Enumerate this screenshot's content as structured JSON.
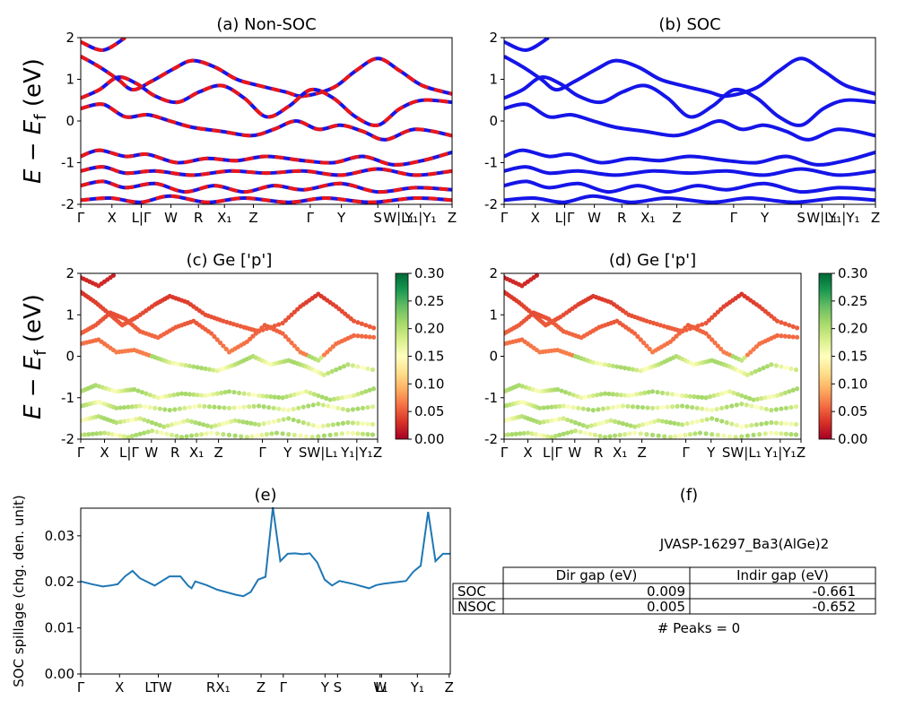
{
  "chart_data": [
    {
      "id": "a",
      "type": "line",
      "title": "(a) Non-SOC",
      "ylabel": "E - E_f (eV)",
      "ylim": [
        -2,
        2
      ],
      "yticks": [
        "-2",
        "-1",
        "0",
        "1",
        "2"
      ],
      "xtick_labels": [
        "Γ",
        "X",
        "L|Γ",
        "W",
        "R",
        "X₁",
        "Z",
        "Γ",
        "Y",
        "S",
        "W|L₁",
        "Y₁|Y₁",
        "Z"
      ],
      "series": [
        {
          "values": [
            [
              0,
              1.9
            ],
            [
              0.06,
              1.7
            ],
            [
              0.12,
              2.0
            ]
          ]
        },
        {
          "values": [
            [
              0,
              1.55
            ],
            [
              0.05,
              1.3
            ],
            [
              0.1,
              1.0
            ],
            [
              0.14,
              0.75
            ],
            [
              0.19,
              0.95
            ],
            [
              0.25,
              1.25
            ],
            [
              0.3,
              1.45
            ],
            [
              0.36,
              1.3
            ],
            [
              0.42,
              1.0
            ],
            [
              0.48,
              0.85
            ],
            [
              0.55,
              0.7
            ],
            [
              0.6,
              0.6
            ],
            [
              0.68,
              0.8
            ],
            [
              0.74,
              1.2
            ],
            [
              0.8,
              1.5
            ],
            [
              0.86,
              1.2
            ],
            [
              0.92,
              0.85
            ],
            [
              1.0,
              0.65
            ]
          ]
        },
        {
          "values": [
            [
              0,
              0.55
            ],
            [
              0.05,
              0.75
            ],
            [
              0.1,
              1.05
            ],
            [
              0.15,
              0.9
            ],
            [
              0.2,
              0.6
            ],
            [
              0.26,
              0.45
            ],
            [
              0.32,
              0.7
            ],
            [
              0.38,
              0.85
            ],
            [
              0.44,
              0.55
            ],
            [
              0.5,
              0.1
            ],
            [
              0.56,
              0.35
            ],
            [
              0.62,
              0.75
            ],
            [
              0.68,
              0.55
            ],
            [
              0.74,
              0.1
            ],
            [
              0.8,
              -0.1
            ],
            [
              0.86,
              0.3
            ],
            [
              0.92,
              0.5
            ],
            [
              1.0,
              0.45
            ]
          ]
        },
        {
          "values": [
            [
              0,
              0.3
            ],
            [
              0.06,
              0.4
            ],
            [
              0.12,
              0.1
            ],
            [
              0.18,
              0.15
            ],
            [
              0.24,
              0.0
            ],
            [
              0.3,
              -0.15
            ],
            [
              0.38,
              -0.25
            ],
            [
              0.46,
              -0.35
            ],
            [
              0.52,
              -0.2
            ],
            [
              0.58,
              0.0
            ],
            [
              0.64,
              -0.2
            ],
            [
              0.7,
              -0.1
            ],
            [
              0.76,
              -0.25
            ],
            [
              0.82,
              -0.45
            ],
            [
              0.9,
              -0.2
            ],
            [
              1.0,
              -0.35
            ]
          ]
        },
        {
          "values": [
            [
              0,
              -0.85
            ],
            [
              0.05,
              -0.7
            ],
            [
              0.12,
              -0.85
            ],
            [
              0.18,
              -0.8
            ],
            [
              0.26,
              -1.0
            ],
            [
              0.34,
              -0.9
            ],
            [
              0.42,
              -0.95
            ],
            [
              0.5,
              -0.85
            ],
            [
              0.6,
              -0.95
            ],
            [
              0.68,
              -1.0
            ],
            [
              0.76,
              -0.85
            ],
            [
              0.84,
              -1.05
            ],
            [
              0.92,
              -0.95
            ],
            [
              1.0,
              -0.75
            ]
          ]
        },
        {
          "values": [
            [
              0,
              -1.2
            ],
            [
              0.06,
              -1.1
            ],
            [
              0.12,
              -1.25
            ],
            [
              0.2,
              -1.2
            ],
            [
              0.3,
              -1.3
            ],
            [
              0.4,
              -1.2
            ],
            [
              0.5,
              -1.25
            ],
            [
              0.6,
              -1.2
            ],
            [
              0.7,
              -1.3
            ],
            [
              0.8,
              -1.15
            ],
            [
              0.9,
              -1.3
            ],
            [
              1.0,
              -1.2
            ]
          ]
        },
        {
          "values": [
            [
              0,
              -1.55
            ],
            [
              0.06,
              -1.45
            ],
            [
              0.12,
              -1.6
            ],
            [
              0.2,
              -1.5
            ],
            [
              0.28,
              -1.7
            ],
            [
              0.36,
              -1.55
            ],
            [
              0.44,
              -1.7
            ],
            [
              0.52,
              -1.55
            ],
            [
              0.6,
              -1.65
            ],
            [
              0.7,
              -1.5
            ],
            [
              0.8,
              -1.7
            ],
            [
              0.9,
              -1.6
            ],
            [
              1.0,
              -1.65
            ]
          ]
        },
        {
          "values": [
            [
              0,
              -1.9
            ],
            [
              0.08,
              -1.85
            ],
            [
              0.16,
              -1.95
            ],
            [
              0.24,
              -1.8
            ],
            [
              0.34,
              -1.95
            ],
            [
              0.44,
              -1.85
            ],
            [
              0.56,
              -1.95
            ],
            [
              0.66,
              -1.85
            ],
            [
              0.78,
              -1.95
            ],
            [
              0.9,
              -1.85
            ],
            [
              1.0,
              -1.9
            ]
          ]
        }
      ]
    },
    {
      "id": "b",
      "type": "line",
      "title": "(b) SOC",
      "ylim": [
        -2,
        2
      ],
      "yticks": [
        "-2",
        "-1",
        "0",
        "1",
        "2"
      ],
      "xtick_labels": [
        "Γ",
        "X",
        "L|Γ",
        "W",
        "R",
        "X₁",
        "Z",
        "Γ",
        "Y",
        "S",
        "W|L₁",
        "Y₁|Y₁",
        "Z"
      ],
      "series": [
        {
          "values": [
            [
              0,
              1.9
            ],
            [
              0.06,
              1.7
            ],
            [
              0.12,
              2.0
            ]
          ]
        },
        {
          "values": [
            [
              0,
              1.55
            ],
            [
              0.05,
              1.3
            ],
            [
              0.1,
              1.0
            ],
            [
              0.14,
              0.75
            ],
            [
              0.19,
              0.95
            ],
            [
              0.25,
              1.25
            ],
            [
              0.3,
              1.45
            ],
            [
              0.36,
              1.3
            ],
            [
              0.42,
              1.0
            ],
            [
              0.48,
              0.85
            ],
            [
              0.55,
              0.7
            ],
            [
              0.6,
              0.6
            ],
            [
              0.68,
              0.8
            ],
            [
              0.74,
              1.2
            ],
            [
              0.8,
              1.5
            ],
            [
              0.86,
              1.2
            ],
            [
              0.92,
              0.85
            ],
            [
              1.0,
              0.65
            ]
          ]
        },
        {
          "values": [
            [
              0,
              0.55
            ],
            [
              0.05,
              0.75
            ],
            [
              0.1,
              1.05
            ],
            [
              0.15,
              0.9
            ],
            [
              0.2,
              0.6
            ],
            [
              0.26,
              0.45
            ],
            [
              0.32,
              0.7
            ],
            [
              0.38,
              0.85
            ],
            [
              0.44,
              0.55
            ],
            [
              0.5,
              0.1
            ],
            [
              0.56,
              0.35
            ],
            [
              0.62,
              0.75
            ],
            [
              0.68,
              0.55
            ],
            [
              0.74,
              0.1
            ],
            [
              0.8,
              -0.1
            ],
            [
              0.86,
              0.3
            ],
            [
              0.92,
              0.5
            ],
            [
              1.0,
              0.45
            ]
          ]
        },
        {
          "values": [
            [
              0,
              0.3
            ],
            [
              0.06,
              0.4
            ],
            [
              0.12,
              0.1
            ],
            [
              0.18,
              0.15
            ],
            [
              0.24,
              0.0
            ],
            [
              0.3,
              -0.15
            ],
            [
              0.38,
              -0.25
            ],
            [
              0.46,
              -0.35
            ],
            [
              0.52,
              -0.2
            ],
            [
              0.58,
              0.0
            ],
            [
              0.64,
              -0.2
            ],
            [
              0.7,
              -0.1
            ],
            [
              0.76,
              -0.25
            ],
            [
              0.82,
              -0.45
            ],
            [
              0.9,
              -0.2
            ],
            [
              1.0,
              -0.35
            ]
          ]
        },
        {
          "values": [
            [
              0,
              -0.85
            ],
            [
              0.05,
              -0.7
            ],
            [
              0.12,
              -0.85
            ],
            [
              0.18,
              -0.8
            ],
            [
              0.26,
              -1.0
            ],
            [
              0.34,
              -0.9
            ],
            [
              0.42,
              -0.95
            ],
            [
              0.5,
              -0.85
            ],
            [
              0.6,
              -0.95
            ],
            [
              0.68,
              -1.0
            ],
            [
              0.76,
              -0.85
            ],
            [
              0.84,
              -1.05
            ],
            [
              0.92,
              -0.95
            ],
            [
              1.0,
              -0.75
            ]
          ]
        },
        {
          "values": [
            [
              0,
              -1.2
            ],
            [
              0.06,
              -1.1
            ],
            [
              0.12,
              -1.25
            ],
            [
              0.2,
              -1.2
            ],
            [
              0.3,
              -1.3
            ],
            [
              0.4,
              -1.2
            ],
            [
              0.5,
              -1.25
            ],
            [
              0.6,
              -1.2
            ],
            [
              0.7,
              -1.3
            ],
            [
              0.8,
              -1.15
            ],
            [
              0.9,
              -1.3
            ],
            [
              1.0,
              -1.2
            ]
          ]
        },
        {
          "values": [
            [
              0,
              -1.55
            ],
            [
              0.06,
              -1.45
            ],
            [
              0.12,
              -1.6
            ],
            [
              0.2,
              -1.5
            ],
            [
              0.28,
              -1.7
            ],
            [
              0.36,
              -1.55
            ],
            [
              0.44,
              -1.7
            ],
            [
              0.52,
              -1.55
            ],
            [
              0.6,
              -1.65
            ],
            [
              0.7,
              -1.5
            ],
            [
              0.8,
              -1.7
            ],
            [
              0.9,
              -1.6
            ],
            [
              1.0,
              -1.65
            ]
          ]
        },
        {
          "values": [
            [
              0,
              -1.9
            ],
            [
              0.08,
              -1.85
            ],
            [
              0.16,
              -1.95
            ],
            [
              0.24,
              -1.8
            ],
            [
              0.34,
              -1.95
            ],
            [
              0.44,
              -1.85
            ],
            [
              0.56,
              -1.95
            ],
            [
              0.66,
              -1.85
            ],
            [
              0.78,
              -1.95
            ],
            [
              0.9,
              -1.85
            ],
            [
              1.0,
              -1.9
            ]
          ]
        }
      ]
    },
    {
      "id": "c",
      "type": "scatter",
      "title": "(c)  Ge ['p']",
      "ylabel": "E - E_f (eV)",
      "ylim": [
        -2,
        2
      ],
      "yticks": [
        "-2",
        "-1",
        "0",
        "1",
        "2"
      ],
      "xtick_labels": [
        "Γ",
        "X",
        "L|Γ",
        "W",
        "R",
        "X₁",
        "Z",
        "Γ",
        "Y",
        "SW|L₁",
        "Y₁|Y₁",
        "Z"
      ],
      "colorbar": {
        "min": 0.0,
        "max": 0.3,
        "ticks": [
          "0.00",
          "0.05",
          "0.10",
          "0.15",
          "0.20",
          "0.25",
          "0.30"
        ]
      }
    },
    {
      "id": "d",
      "type": "scatter",
      "title": "(d) Ge ['p']",
      "ylim": [
        -2,
        2
      ],
      "yticks": [
        "-2",
        "-1",
        "0",
        "1",
        "2"
      ],
      "xtick_labels": [
        "Γ",
        "X",
        "L|Γ",
        "W",
        "R",
        "X₁",
        "Z",
        "Γ",
        "Y",
        "SW|L₁",
        "Y₁|Y₁",
        "Z"
      ],
      "colorbar": {
        "min": 0.0,
        "max": 0.3,
        "ticks": [
          "0.00",
          "0.05",
          "0.10",
          "0.15",
          "0.20",
          "0.25",
          "0.30"
        ]
      }
    },
    {
      "id": "e",
      "type": "line",
      "title": "(e)",
      "ylabel": "SOC spillage (chg. den. unit)",
      "ylim": [
        0,
        0.036
      ],
      "yticks": [
        "0.00",
        "0.01",
        "0.02",
        "0.03"
      ],
      "xtick_labels": [
        "Γ",
        "X",
        "LTW",
        "RX₁",
        "Z",
        "Γ",
        "Y",
        "S",
        "W",
        "L₁",
        "Y₁",
        "Z"
      ],
      "x": [
        0,
        0.03,
        0.06,
        0.08,
        0.1,
        0.12,
        0.14,
        0.16,
        0.2,
        0.24,
        0.27,
        0.29,
        0.3,
        0.31,
        0.34,
        0.37,
        0.42,
        0.44,
        0.46,
        0.48,
        0.5,
        0.52,
        0.54,
        0.56,
        0.58,
        0.6,
        0.62,
        0.64,
        0.66,
        0.68,
        0.7,
        0.74,
        0.78,
        0.8,
        0.82,
        0.84,
        0.86,
        0.88,
        0.9,
        0.92,
        0.94,
        0.96,
        0.98,
        1.0
      ],
      "values": [
        0.0201,
        0.0195,
        0.019,
        0.0192,
        0.0195,
        0.0212,
        0.0224,
        0.0208,
        0.0192,
        0.0212,
        0.0212,
        0.0192,
        0.0186,
        0.0201,
        0.0193,
        0.0183,
        0.0172,
        0.0169,
        0.0178,
        0.0205,
        0.0211,
        0.0362,
        0.0245,
        0.0261,
        0.0262,
        0.026,
        0.0262,
        0.0242,
        0.0205,
        0.0192,
        0.0202,
        0.0195,
        0.0186,
        0.0193,
        0.0196,
        0.0198,
        0.02,
        0.0202,
        0.0222,
        0.0235,
        0.0352,
        0.0245,
        0.0261,
        0.0261
      ]
    }
  ],
  "panel_f": {
    "title": "(f)",
    "jid": "JVASP-16297_Ba3(AlGe)2",
    "columns": [
      "Dir gap (eV)",
      "Indir gap (eV)"
    ],
    "rows": [
      {
        "label": "SOC",
        "dir": "0.009",
        "indir": "-0.661"
      },
      {
        "label": "NSOC",
        "dir": "0.005",
        "indir": "-0.652"
      }
    ],
    "peaks": "# Peaks = 0"
  },
  "colors": {
    "red": "#e8161b",
    "blue": "#1515e8",
    "line": "#1f77b4"
  }
}
